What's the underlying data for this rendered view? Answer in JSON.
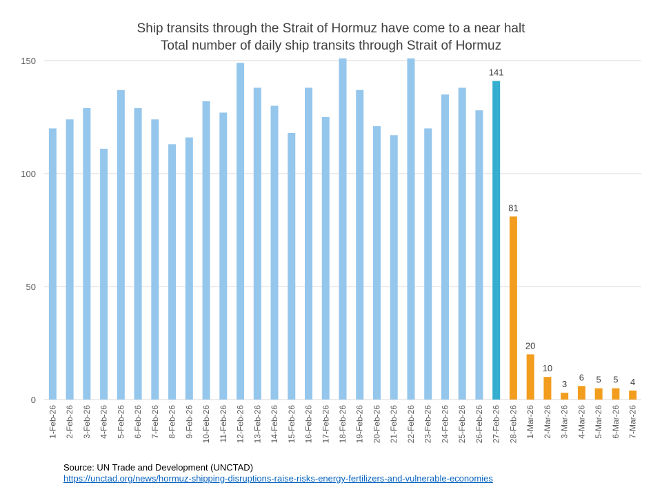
{
  "chart_data": {
    "type": "bar",
    "title": "Ship transits through the Strait of Hormuz have come to a near halt",
    "subtitle": "Total number of daily ship transits through Strait of Hormuz",
    "xlabel": "",
    "ylabel": "",
    "ylim": [
      0,
      150
    ],
    "yticks": [
      0,
      50,
      100,
      150
    ],
    "grid": true,
    "categories": [
      "1-Feb-26",
      "2-Feb-26",
      "3-Feb-26",
      "4-Feb-26",
      "5-Feb-26",
      "6-Feb-26",
      "7-Feb-26",
      "8-Feb-26",
      "9-Feb-26",
      "10-Feb-26",
      "11-Feb-26",
      "12-Feb-26",
      "13-Feb-26",
      "14-Feb-26",
      "15-Feb-26",
      "16-Feb-26",
      "17-Feb-26",
      "18-Feb-26",
      "19-Feb-26",
      "20-Feb-26",
      "21-Feb-26",
      "22-Feb-26",
      "23-Feb-26",
      "24-Feb-26",
      "25-Feb-26",
      "26-Feb-26",
      "27-Feb-26",
      "28-Feb-26",
      "1-Mar-26",
      "2-Mar-26",
      "3-Mar-26",
      "4-Mar-26",
      "5-Mar-26",
      "6-Mar-26",
      "7-Mar-26"
    ],
    "values": [
      120,
      124,
      129,
      111,
      137,
      129,
      124,
      113,
      116,
      132,
      127,
      149,
      138,
      130,
      118,
      138,
      125,
      151,
      137,
      121,
      117,
      151,
      120,
      135,
      138,
      128,
      141,
      81,
      20,
      10,
      3,
      6,
      5,
      5,
      4
    ],
    "labeled_from_index": 26,
    "colors": {
      "before": "#95c6ec",
      "highlight": "#35aecf",
      "after": "#f29d1e"
    },
    "highlight_index": 26
  },
  "source": {
    "line1": "Source: UN Trade and Development (UNCTAD)",
    "link": "https://unctad.org/news/hormuz-shipping-disruptions-raise-risks-energy-fertilizers-and-vulnerable-economies"
  }
}
